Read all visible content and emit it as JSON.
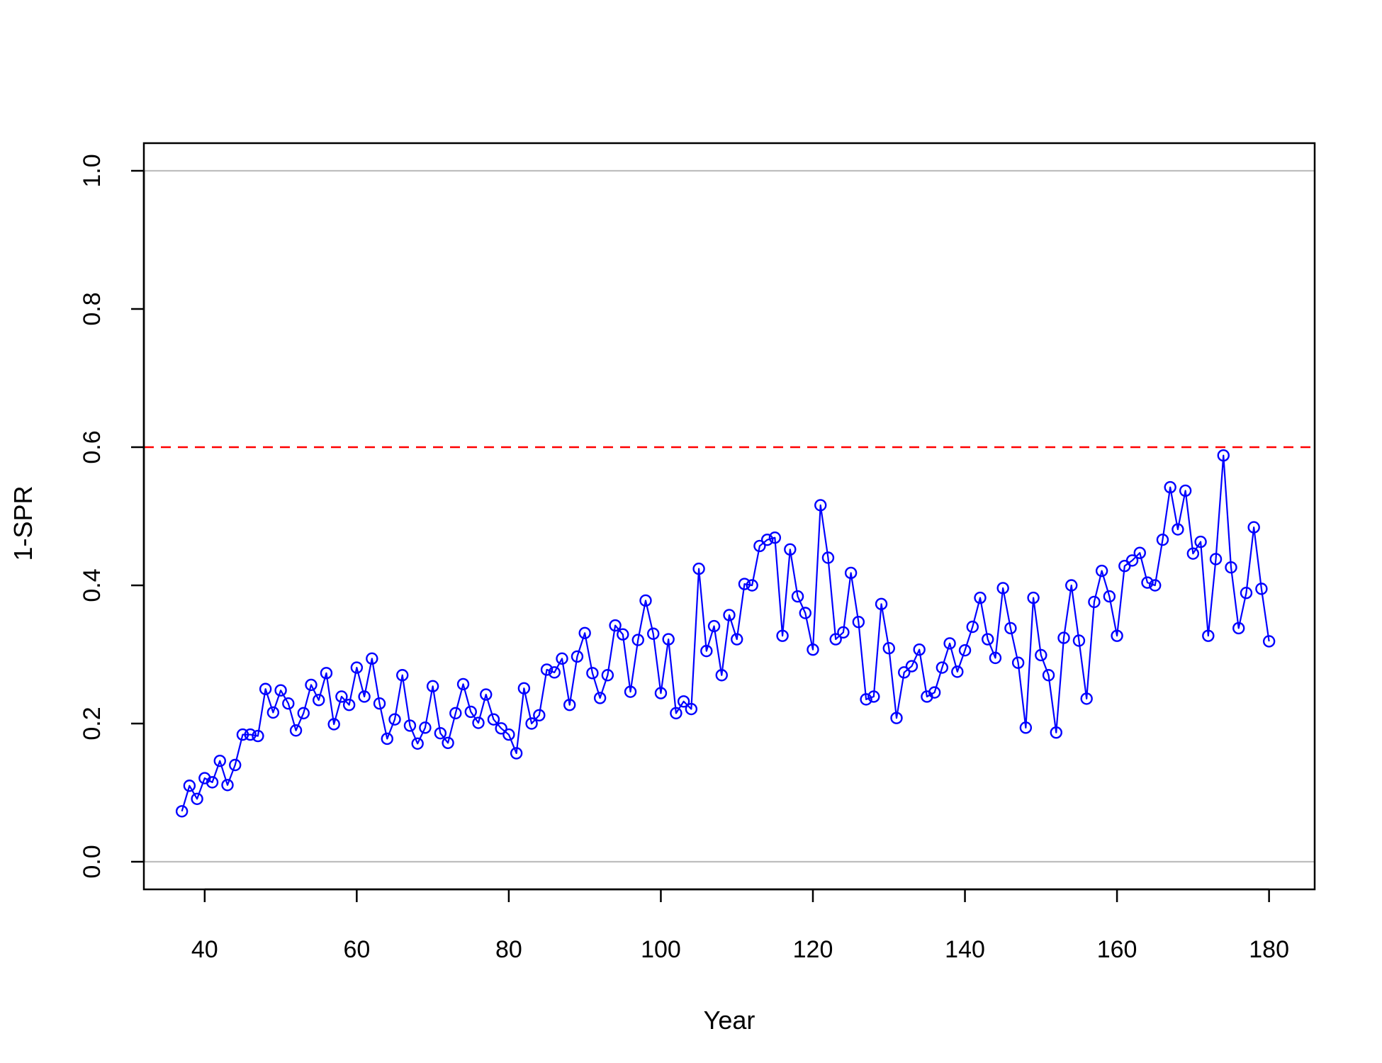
{
  "chart_data": {
    "type": "line",
    "title": "",
    "xlabel": "Year",
    "ylabel": "1-SPR",
    "xlim": [
      32,
      186
    ],
    "ylim": [
      -0.04,
      1.04
    ],
    "x_ticks": [
      40,
      60,
      80,
      100,
      120,
      140,
      160,
      180
    ],
    "y_ticks": [
      0.0,
      0.2,
      0.4,
      0.6,
      0.8,
      1.0
    ],
    "x_tick_labels": [
      "40",
      "60",
      "80",
      "100",
      "120",
      "140",
      "160",
      "180"
    ],
    "y_tick_labels": [
      "0.0",
      "0.2",
      "0.4",
      "0.6",
      "0.8",
      "1.0"
    ],
    "grid": false,
    "reference_lines": [
      {
        "y": 0.0,
        "color": "#bebebe",
        "style": "solid"
      },
      {
        "y": 1.0,
        "color": "#bebebe",
        "style": "solid"
      },
      {
        "y": 0.6,
        "color": "#ff0000",
        "style": "dashed"
      }
    ],
    "series": [
      {
        "color": "#0000ff",
        "marker": "open-circle",
        "x": [
          37,
          38,
          39,
          40,
          41,
          42,
          43,
          44,
          45,
          46,
          47,
          48,
          49,
          50,
          51,
          52,
          53,
          54,
          55,
          56,
          57,
          58,
          59,
          60,
          61,
          62,
          63,
          64,
          65,
          66,
          67,
          68,
          69,
          70,
          71,
          72,
          73,
          74,
          75,
          76,
          77,
          78,
          79,
          80,
          81,
          82,
          83,
          84,
          85,
          86,
          87,
          88,
          89,
          90,
          91,
          92,
          93,
          94,
          95,
          96,
          97,
          98,
          99,
          100,
          101,
          102,
          103,
          104,
          105,
          106,
          107,
          108,
          109,
          110,
          111,
          112,
          113,
          114,
          115,
          116,
          117,
          118,
          119,
          120,
          121,
          122,
          123,
          124,
          125,
          126,
          127,
          128,
          129,
          130,
          131,
          132,
          133,
          134,
          135,
          136,
          137,
          138,
          139,
          140,
          141,
          142,
          143,
          144,
          145,
          146,
          147,
          148,
          149,
          150,
          151,
          152,
          153,
          154,
          155,
          156,
          157,
          158,
          159,
          160,
          161,
          162,
          163,
          164,
          165,
          166,
          167,
          168,
          169,
          170,
          171,
          172,
          173,
          174,
          175,
          176,
          177,
          178,
          179,
          180
        ],
        "y": [
          0.073,
          0.11,
          0.091,
          0.121,
          0.115,
          0.146,
          0.111,
          0.14,
          0.184,
          0.184,
          0.182,
          0.25,
          0.216,
          0.248,
          0.229,
          0.19,
          0.215,
          0.256,
          0.234,
          0.273,
          0.199,
          0.239,
          0.227,
          0.281,
          0.239,
          0.294,
          0.229,
          0.178,
          0.206,
          0.27,
          0.197,
          0.171,
          0.194,
          0.254,
          0.186,
          0.172,
          0.215,
          0.257,
          0.217,
          0.201,
          0.242,
          0.206,
          0.193,
          0.184,
          0.157,
          0.251,
          0.2,
          0.212,
          0.278,
          0.274,
          0.294,
          0.227,
          0.297,
          0.331,
          0.273,
          0.237,
          0.27,
          0.342,
          0.329,
          0.246,
          0.321,
          0.378,
          0.33,
          0.244,
          0.322,
          0.215,
          0.232,
          0.221,
          0.424,
          0.305,
          0.341,
          0.27,
          0.357,
          0.322,
          0.402,
          0.4,
          0.457,
          0.466,
          0.469,
          0.327,
          0.452,
          0.384,
          0.36,
          0.307,
          0.516,
          0.44,
          0.322,
          0.332,
          0.418,
          0.347,
          0.235,
          0.239,
          0.373,
          0.309,
          0.208,
          0.274,
          0.283,
          0.307,
          0.239,
          0.245,
          0.281,
          0.316,
          0.275,
          0.306,
          0.34,
          0.382,
          0.322,
          0.295,
          0.396,
          0.338,
          0.288,
          0.194,
          0.382,
          0.299,
          0.27,
          0.187,
          0.324,
          0.4,
          0.32,
          0.236,
          0.376,
          0.421,
          0.384,
          0.327,
          0.428,
          0.436,
          0.447,
          0.404,
          0.4,
          0.466,
          0.542,
          0.481,
          0.537,
          0.446,
          0.463,
          0.327,
          0.438,
          0.588,
          0.426,
          0.338,
          0.389,
          0.484,
          0.395,
          0.319
        ]
      }
    ]
  }
}
